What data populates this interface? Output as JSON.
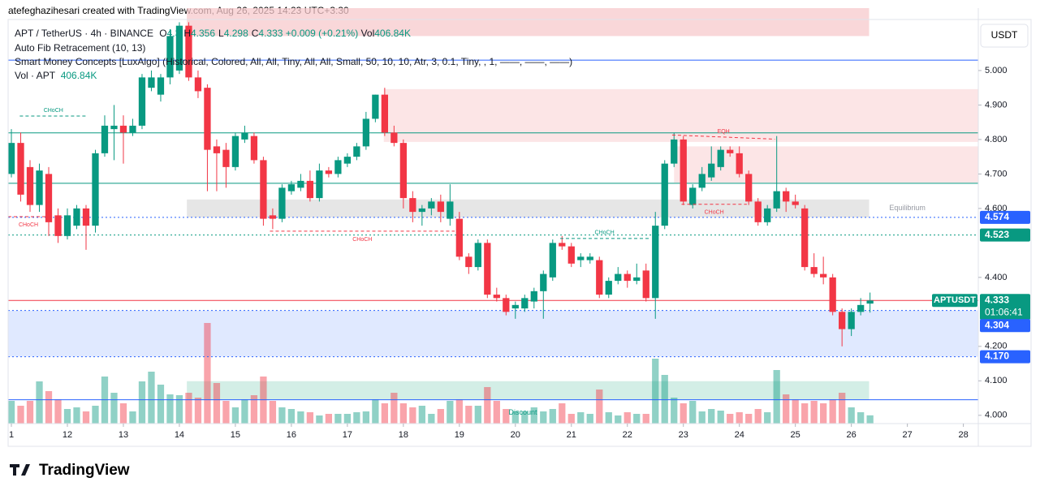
{
  "header": {
    "attribution": "atefeghazihesari created with TradingView.com, Aug 26, 2025 14:23 UTC+3:30",
    "logo": "TradingView",
    "currency": "USDT"
  },
  "legend": {
    "symbol": "APT / TetherUS · 4h · BINANCE",
    "items": [
      {
        "label": "O",
        "value": "4.3"
      },
      {
        "label": "H",
        "value": "4.356"
      },
      {
        "label": "L",
        "value": "4.298"
      },
      {
        "label": "C",
        "value": "4.333"
      }
    ],
    "change": "+0.009 (+0.21%)",
    "vol_label": "Vol",
    "vol_value": "406.84K",
    "indicators": [
      "Auto Fib Retracement (10, 13)",
      "Smart Money Concepts [LuxAlgo] (Historical, Colored, All, All, Tiny, All, All, Small, 50, 10, 10, Atr, 3, 0.1, Tiny, , 1, ——, ——, ——)"
    ],
    "volume_name": "Vol · APT",
    "volume_value": "406.84K"
  },
  "chart_data": {
    "type": "candlestick",
    "up_color": "#089981",
    "down_color": "#f23645",
    "xlim": [
      -0.35,
      103.6
    ],
    "ylim": [
      3.976,
      5.181
    ],
    "xticks": [
      {
        "value": 0,
        "label": "1"
      },
      {
        "value": 6,
        "label": "12"
      },
      {
        "value": 12,
        "label": "13"
      },
      {
        "value": 18,
        "label": "14"
      },
      {
        "value": 24,
        "label": "15"
      },
      {
        "value": 30,
        "label": "16"
      },
      {
        "value": 36,
        "label": "17"
      },
      {
        "value": 42,
        "label": "18"
      },
      {
        "value": 48,
        "label": "19"
      },
      {
        "value": 54,
        "label": "20"
      },
      {
        "value": 60,
        "label": "21"
      },
      {
        "value": 66,
        "label": "22"
      },
      {
        "value": 72,
        "label": "23"
      },
      {
        "value": 78,
        "label": "24"
      },
      {
        "value": 84,
        "label": "25"
      },
      {
        "value": 90,
        "label": "26"
      },
      {
        "value": 96,
        "label": "27"
      },
      {
        "value": 102,
        "label": "28"
      }
    ],
    "yticks": [
      {
        "value": 4,
        "label": "4.000"
      },
      {
        "value": 4.1,
        "label": "4.100"
      },
      {
        "value": 4.2,
        "label": "4.200"
      },
      {
        "value": 4.4,
        "label": "4.400"
      },
      {
        "value": 4.6,
        "label": "4.600"
      },
      {
        "value": 4.7,
        "label": "4.700"
      },
      {
        "value": 4.8,
        "label": "4.800"
      },
      {
        "value": 4.9,
        "label": "4.900"
      },
      {
        "value": 5,
        "label": "5.000"
      }
    ],
    "candles": [
      [
        4.7,
        4.83,
        4.69,
        4.79
      ],
      [
        4.79,
        4.82,
        4.62,
        4.64
      ],
      [
        4.72,
        4.74,
        4.59,
        4.61
      ],
      [
        4.61,
        4.73,
        4.59,
        4.71
      ],
      [
        4.7,
        4.72,
        4.52,
        4.56
      ],
      [
        4.58,
        4.6,
        4.5,
        4.52
      ],
      [
        4.52,
        4.6,
        4.51,
        4.58
      ],
      [
        4.55,
        4.61,
        4.54,
        4.6
      ],
      [
        4.6,
        4.61,
        4.48,
        4.55
      ],
      [
        4.55,
        4.77,
        4.53,
        4.76
      ],
      [
        4.76,
        4.87,
        4.75,
        4.84
      ],
      [
        4.83,
        4.9,
        4.74,
        4.84
      ],
      [
        4.84,
        4.87,
        4.73,
        4.82
      ],
      [
        4.82,
        4.86,
        4.81,
        4.84
      ],
      [
        4.84,
        4.99,
        4.83,
        4.98
      ],
      [
        4.95,
        5.0,
        4.94,
        4.98
      ],
      [
        4.93,
        4.99,
        4.91,
        4.98
      ],
      [
        4.98,
        5.12,
        4.96,
        5.1
      ],
      [
        5.0,
        5.14,
        4.99,
        5.13
      ],
      [
        5.13,
        5.14,
        4.97,
        4.98
      ],
      [
        4.98,
        5.0,
        4.92,
        4.94
      ],
      [
        4.95,
        4.96,
        4.65,
        4.77
      ],
      [
        4.78,
        4.8,
        4.65,
        4.76
      ],
      [
        4.77,
        4.79,
        4.66,
        4.72
      ],
      [
        4.72,
        4.82,
        4.71,
        4.81
      ],
      [
        4.8,
        4.84,
        4.79,
        4.82
      ],
      [
        4.81,
        4.82,
        4.73,
        4.74
      ],
      [
        4.74,
        4.75,
        4.55,
        4.57
      ],
      [
        4.58,
        4.6,
        4.54,
        4.57
      ],
      [
        4.57,
        4.67,
        4.56,
        4.66
      ],
      [
        4.65,
        4.68,
        4.64,
        4.67
      ],
      [
        4.66,
        4.7,
        4.65,
        4.68
      ],
      [
        4.68,
        4.71,
        4.62,
        4.63
      ],
      [
        4.63,
        4.73,
        4.62,
        4.71
      ],
      [
        4.71,
        4.72,
        4.69,
        4.7
      ],
      [
        4.7,
        4.75,
        4.69,
        4.74
      ],
      [
        4.73,
        4.76,
        4.72,
        4.75
      ],
      [
        4.75,
        4.79,
        4.74,
        4.78
      ],
      [
        4.78,
        4.88,
        4.77,
        4.86
      ],
      [
        4.86,
        4.93,
        4.85,
        4.93
      ],
      [
        4.93,
        4.95,
        4.81,
        4.82
      ],
      [
        4.82,
        4.84,
        4.78,
        4.79
      ],
      [
        4.79,
        4.8,
        4.6,
        4.63
      ],
      [
        4.63,
        4.65,
        4.56,
        4.59
      ],
      [
        4.59,
        4.61,
        4.55,
        4.6
      ],
      [
        4.6,
        4.63,
        4.58,
        4.62
      ],
      [
        4.62,
        4.64,
        4.56,
        4.59
      ],
      [
        4.57,
        4.67,
        4.55,
        4.62
      ],
      [
        4.57,
        4.59,
        4.45,
        4.46
      ],
      [
        4.46,
        4.47,
        4.41,
        4.43
      ],
      [
        4.43,
        4.51,
        4.42,
        4.5
      ],
      [
        4.5,
        4.51,
        4.34,
        4.35
      ],
      [
        4.35,
        4.37,
        4.33,
        4.34
      ],
      [
        4.34,
        4.35,
        4.29,
        4.3
      ],
      [
        4.31,
        4.33,
        4.28,
        4.32
      ],
      [
        4.31,
        4.35,
        4.3,
        4.34
      ],
      [
        4.33,
        4.37,
        4.31,
        4.36
      ],
      [
        4.36,
        4.42,
        4.28,
        4.41
      ],
      [
        4.4,
        4.51,
        4.39,
        4.5
      ],
      [
        4.5,
        4.52,
        4.48,
        4.49
      ],
      [
        4.49,
        4.5,
        4.43,
        4.44
      ],
      [
        4.45,
        4.47,
        4.43,
        4.46
      ],
      [
        4.45,
        4.47,
        4.44,
        4.46
      ],
      [
        4.45,
        4.46,
        4.34,
        4.35
      ],
      [
        4.35,
        4.4,
        4.34,
        4.39
      ],
      [
        4.39,
        4.43,
        4.38,
        4.41
      ],
      [
        4.41,
        4.42,
        4.37,
        4.39
      ],
      [
        4.39,
        4.44,
        4.38,
        4.4
      ],
      [
        4.42,
        4.44,
        4.33,
        4.34
      ],
      [
        4.34,
        4.59,
        4.28,
        4.55
      ],
      [
        4.55,
        4.74,
        4.54,
        4.73
      ],
      [
        4.73,
        4.82,
        4.72,
        4.8
      ],
      [
        4.8,
        4.81,
        4.61,
        4.62
      ],
      [
        4.61,
        4.67,
        4.6,
        4.66
      ],
      [
        4.66,
        4.72,
        4.65,
        4.7
      ],
      [
        4.69,
        4.78,
        4.68,
        4.73
      ],
      [
        4.72,
        4.78,
        4.71,
        4.77
      ],
      [
        4.77,
        4.78,
        4.75,
        4.76
      ],
      [
        4.76,
        4.78,
        4.69,
        4.7
      ],
      [
        4.7,
        4.71,
        4.61,
        4.62
      ],
      [
        4.62,
        4.63,
        4.55,
        4.56
      ],
      [
        4.56,
        4.61,
        4.55,
        4.6
      ],
      [
        4.6,
        4.81,
        4.59,
        4.65
      ],
      [
        4.65,
        4.66,
        4.59,
        4.62
      ],
      [
        4.62,
        4.64,
        4.6,
        4.61
      ],
      [
        4.6,
        4.61,
        4.42,
        4.43
      ],
      [
        4.43,
        4.47,
        4.4,
        4.41
      ],
      [
        4.41,
        4.46,
        4.38,
        4.4
      ],
      [
        4.4,
        4.41,
        4.29,
        4.3
      ],
      [
        4.3,
        4.31,
        4.2,
        4.25
      ],
      [
        4.25,
        4.31,
        4.23,
        4.3
      ],
      [
        4.3,
        4.34,
        4.29,
        4.32
      ],
      [
        4.324,
        4.356,
        4.298,
        4.333
      ]
    ],
    "volume": [
      1120,
      880,
      1120,
      2080,
      1600,
      1200,
      720,
      800,
      600,
      880,
      2320,
      1520,
      1000,
      600,
      2080,
      2560,
      1920,
      1440,
      1400,
      1520,
      1280,
      4960,
      2000,
      1120,
      800,
      1200,
      1400,
      2320,
      1120,
      800,
      720,
      600,
      560,
      400,
      480,
      480,
      480,
      560,
      600,
      1200,
      1000,
      1520,
      1000,
      800,
      880,
      480,
      720,
      1120,
      1200,
      880,
      880,
      1800,
      1120,
      720,
      600,
      600,
      800,
      600,
      720,
      1000,
      480,
      560,
      480,
      1680,
      560,
      400,
      560,
      480,
      480,
      3200,
      2400,
      1280,
      1000,
      1120,
      600,
      720,
      640,
      480,
      560,
      480,
      720,
      560,
      2640,
      1440,
      1200,
      1000,
      1120,
      1000,
      1200,
      1520,
      800,
      560,
      406.84
    ],
    "zones": [
      {
        "x": [
          18.8,
          91.9
        ],
        "y": [
          5.1,
          5.181
        ],
        "color": "#f7c9cc"
      },
      {
        "x": [
          39.9,
          103.6
        ],
        "y": [
          4.793,
          4.946
        ],
        "color": "#fbdcde"
      },
      {
        "x": [
          71,
          103.6
        ],
        "y": [
          4.675,
          4.78
        ],
        "color": "#fbdcde"
      },
      {
        "x": [
          18.8,
          91.9
        ],
        "y": [
          4.574,
          4.626
        ],
        "color": "#dddddd"
      },
      {
        "x": [
          18.8,
          91.9
        ],
        "y": [
          4.045,
          4.099
        ],
        "color": "#c4e8dd"
      },
      {
        "x": [
          -0.35,
          103.6
        ],
        "y": [
          4.17,
          4.304
        ],
        "color": "#d6e2ff"
      }
    ],
    "lines": [
      {
        "value": 5.03,
        "color": "#2962ff",
        "dash": "none"
      },
      {
        "value": 4.819,
        "color": "#089981",
        "dash": "none"
      },
      {
        "value": 4.673,
        "color": "#089981",
        "dash": "none"
      },
      {
        "value": 4.574,
        "color": "#2962ff",
        "dash": "2 3"
      },
      {
        "value": 4.523,
        "color": "#089981",
        "dash": "2 3"
      },
      {
        "value": 4.333,
        "color": "#f23645",
        "dash": "none"
      },
      {
        "value": 4.304,
        "color": "#2962ff",
        "dash": "2 3"
      },
      {
        "value": 4.17,
        "color": "#2962ff",
        "dash": "2 3"
      },
      {
        "value": 4.045,
        "color": "#2962ff",
        "dash": "none"
      }
    ],
    "annotations": [
      {
        "text": "CHoCH",
        "color": "#089981",
        "x": [
          0.9,
          8.1
        ],
        "y": [
          4.868,
          4.868
        ],
        "below": false
      },
      {
        "text": "CHoCH",
        "color": "#f23645",
        "x": [
          -0.35,
          4
        ],
        "y": [
          4.576,
          4.576
        ],
        "below": true
      },
      {
        "text": "CHoCH",
        "color": "#f23645",
        "x": [
          27.7,
          47.5
        ],
        "y": [
          4.534,
          4.534
        ],
        "below": true
      },
      {
        "text": "CHoCH",
        "color": "#089981",
        "x": [
          58.8,
          68.3
        ],
        "y": [
          4.513,
          4.513
        ],
        "below": false
      },
      {
        "text": "EQH",
        "color": "#f23645",
        "x": [
          70.8,
          81.8
        ],
        "y": [
          4.813,
          4.801
        ],
        "below": false
      },
      {
        "text": "CHoCH",
        "color": "#f23645",
        "x": [
          71.8,
          78.8
        ],
        "y": [
          4.612,
          4.612
        ],
        "below": true
      }
    ],
    "zone_labels": [
      {
        "text": "Equilibrium",
        "x": 96,
        "y": 4.6,
        "color": "#9598a1"
      },
      {
        "text": "Discount",
        "x": 54.8,
        "y": 4.007,
        "color": "#089981"
      }
    ],
    "price_badges": [
      {
        "value": 4.574,
        "label": "4.574",
        "color": "#2962ff"
      },
      {
        "value": 4.523,
        "label": "4.523",
        "color": "#089981"
      },
      {
        "value": 4.304,
        "label": "4.304",
        "color": "#2962ff"
      },
      {
        "value": 4.17,
        "label": "4.170",
        "color": "#2962ff"
      }
    ],
    "current": {
      "symbol": "APTUSDT",
      "value": 4.333,
      "label": "4.333",
      "countdown": "01:06:41",
      "color": "#089981"
    }
  }
}
